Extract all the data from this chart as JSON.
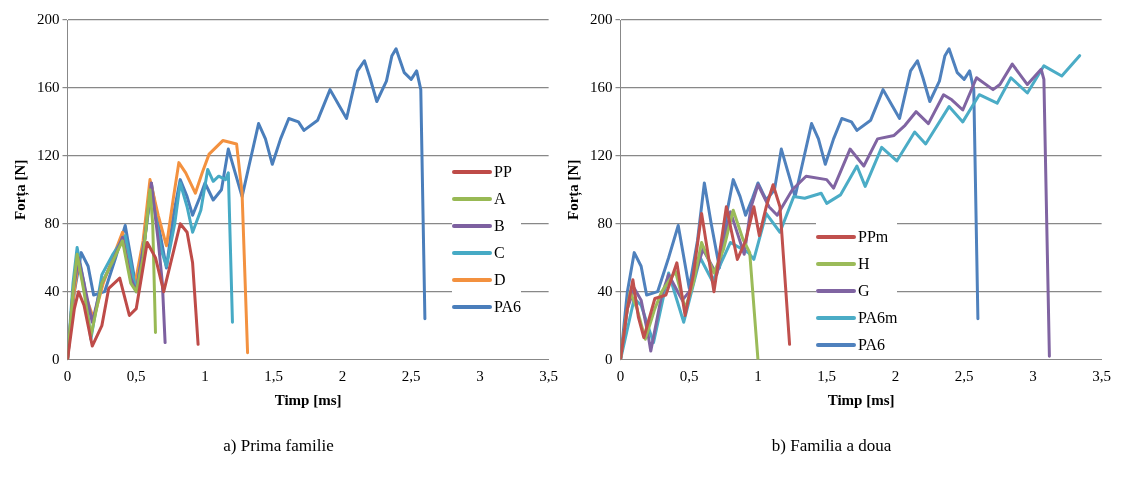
{
  "chart_data": [
    {
      "type": "line",
      "title": "a) Prima familie",
      "xlabel": "Timp [ms]",
      "ylabel": "Forța [N]",
      "xlim": [
        0,
        3.5
      ],
      "xticks": [
        0,
        {
          "value": 0.5,
          "label": "0,5"
        },
        1,
        {
          "value": 1.5,
          "label": "1,5"
        },
        2,
        {
          "value": 2.5,
          "label": "2,5"
        },
        3,
        {
          "value": 3.5,
          "label": "3,5"
        }
      ],
      "ylim": [
        0,
        200
      ],
      "yticks": [
        0,
        40,
        80,
        120,
        160,
        200
      ],
      "grid": "y",
      "legend": "right",
      "marker": "none",
      "line_style": "solid",
      "series": [
        {
          "name": "PP",
          "color": "#be4b48",
          "x": [
            0,
            0.05,
            0.08,
            0.12,
            0.18,
            0.25,
            0.3,
            0.38,
            0.45,
            0.5,
            0.58,
            0.64,
            0.7,
            0.76,
            0.82,
            0.87,
            0.91,
            0.95
          ],
          "values": [
            0,
            30,
            40,
            32,
            8,
            20,
            42,
            48,
            26,
            30,
            69,
            60,
            40,
            60,
            80,
            75,
            57,
            9
          ]
        },
        {
          "name": "A",
          "color": "#98b954",
          "x": [
            0,
            0.04,
            0.07,
            0.12,
            0.17,
            0.25,
            0.33,
            0.4,
            0.46,
            0.5,
            0.55,
            0.6,
            0.62,
            0.64
          ],
          "values": [
            0,
            40,
            62,
            40,
            14,
            45,
            58,
            70,
            45,
            40,
            60,
            100,
            80,
            16
          ]
        },
        {
          "name": "B",
          "color": "#7d60a0",
          "x": [
            0,
            0.04,
            0.08,
            0.12,
            0.18,
            0.25,
            0.33,
            0.4,
            0.46,
            0.5,
            0.56,
            0.61,
            0.66,
            0.69,
            0.71
          ],
          "values": [
            0,
            40,
            60,
            45,
            22,
            45,
            58,
            72,
            48,
            40,
            70,
            104,
            70,
            45,
            10
          ]
        },
        {
          "name": "C",
          "color": "#46aac5",
          "x": [
            0,
            0.04,
            0.07,
            0.12,
            0.17,
            0.25,
            0.33,
            0.42,
            0.5,
            0.56,
            0.61,
            0.68,
            0.72,
            0.78,
            0.82,
            0.87,
            0.91,
            0.97,
            1.02,
            1.06,
            1.1,
            1.15,
            1.17,
            1.2
          ],
          "values": [
            0,
            45,
            66,
            45,
            12,
            50,
            62,
            73,
            40,
            70,
            100,
            65,
            55,
            80,
            104,
            90,
            75,
            88,
            112,
            105,
            108,
            106,
            110,
            22
          ]
        },
        {
          "name": "D",
          "color": "#f3913f",
          "x": [
            0,
            0.04,
            0.08,
            0.13,
            0.19,
            0.26,
            0.33,
            0.4,
            0.49,
            0.55,
            0.6,
            0.66,
            0.72,
            0.77,
            0.81,
            0.86,
            0.93,
            0.98,
            1.03,
            1.08,
            1.13,
            1.18,
            1.23,
            1.27,
            1.31
          ],
          "values": [
            0,
            35,
            58,
            38,
            24,
            45,
            60,
            75,
            44,
            70,
            106,
            85,
            67,
            95,
            116,
            110,
            98,
            110,
            121,
            125,
            129,
            128,
            127,
            98,
            4
          ]
        },
        {
          "name": "PA6",
          "color": "#4a7ebb",
          "x": [
            0,
            0.05,
            0.1,
            0.15,
            0.19,
            0.27,
            0.35,
            0.42,
            0.5,
            0.56,
            0.61,
            0.66,
            0.72,
            0.77,
            0.82,
            0.87,
            0.91,
            0.96,
            1.0,
            1.06,
            1.12,
            1.17,
            1.22,
            1.27,
            1.32,
            1.39,
            1.44,
            1.49,
            1.55,
            1.61,
            1.68,
            1.72,
            1.82,
            1.91,
            1.98,
            2.03,
            2.11,
            2.16,
            2.2,
            2.25,
            2.32,
            2.36,
            2.39,
            2.45,
            2.5,
            2.54,
            2.57,
            2.6
          ],
          "values": [
            0,
            40,
            63,
            55,
            38,
            40,
            60,
            79,
            42,
            70,
            104,
            80,
            54,
            85,
            106,
            96,
            85,
            95,
            104,
            94,
            100,
            124,
            110,
            96,
            114,
            139,
            130,
            115,
            130,
            142,
            140,
            135,
            141,
            159,
            149,
            142,
            170,
            176,
            166,
            152,
            164,
            179,
            183,
            169,
            165,
            170,
            159,
            24
          ]
        }
      ]
    },
    {
      "type": "line",
      "title": "b) Familia a doua",
      "xlabel": "Timp [ms]",
      "ylabel": "Forța [N]",
      "xlim": [
        0,
        3.5
      ],
      "xticks": [
        0,
        {
          "value": 0.5,
          "label": "0,5"
        },
        1,
        {
          "value": 1.5,
          "label": "1,5"
        },
        2,
        {
          "value": 2.5,
          "label": "2,5"
        },
        3,
        {
          "value": 3.5,
          "label": "3,5"
        }
      ],
      "ylim": [
        0,
        200
      ],
      "yticks": [
        0,
        40,
        80,
        120,
        160,
        200
      ],
      "grid": "y",
      "legend": "bottom",
      "marker": "none",
      "line_style": "solid",
      "series": [
        {
          "name": "PPm",
          "color": "#c0504d",
          "x": [
            0,
            0.05,
            0.09,
            0.13,
            0.17,
            0.25,
            0.33,
            0.41,
            0.47,
            0.53,
            0.59,
            0.68,
            0.77,
            0.85,
            0.91,
            0.97,
            1.01,
            1.06,
            1.11,
            1.16,
            1.23
          ],
          "values": [
            0,
            30,
            47,
            25,
            13,
            36,
            38,
            57,
            26,
            50,
            86,
            40,
            90,
            59,
            70,
            90,
            73,
            90,
            103,
            90,
            9
          ]
        },
        {
          "name": "H",
          "color": "#9bbb59",
          "x": [
            0,
            0.04,
            0.07,
            0.12,
            0.18,
            0.25,
            0.3,
            0.4,
            0.47,
            0.53,
            0.59,
            0.68,
            0.75,
            0.82,
            0.89,
            0.94,
            1.0
          ],
          "values": [
            0,
            25,
            40,
            30,
            12,
            30,
            40,
            52,
            30,
            45,
            69,
            51,
            65,
            88,
            71,
            63,
            0
          ]
        },
        {
          "name": "G",
          "color": "#8064a2",
          "x": [
            0,
            0.05,
            0.1,
            0.15,
            0.2,
            0.22,
            0.3,
            0.35,
            0.45,
            0.5,
            0.6,
            0.7,
            0.8,
            0.9,
            0.95,
            1.0,
            1.08,
            1.14,
            1.25,
            1.35,
            1.5,
            1.55,
            1.67,
            1.77,
            1.87,
            1.99,
            2.07,
            2.15,
            2.24,
            2.35,
            2.41,
            2.49,
            2.59,
            2.71,
            2.76,
            2.85,
            2.96,
            3.06,
            3.08,
            3.12
          ],
          "values": [
            0,
            30,
            42,
            35,
            15,
            5,
            38,
            50,
            35,
            40,
            65,
            50,
            87,
            62,
            90,
            103,
            90,
            85,
            100,
            108,
            106,
            101,
            124,
            114,
            130,
            132,
            138,
            146,
            139,
            156,
            153,
            147,
            166,
            159,
            162,
            174,
            162,
            171,
            165,
            2
          ]
        },
        {
          "name": "PA6m",
          "color": "#4bacc6",
          "x": [
            0,
            0.1,
            0.15,
            0.24,
            0.35,
            0.46,
            0.58,
            0.67,
            0.8,
            0.93,
            0.97,
            1.06,
            1.16,
            1.26,
            1.34,
            1.46,
            1.5,
            1.6,
            1.72,
            1.78,
            1.9,
            2.01,
            2.14,
            2.22,
            2.39,
            2.49,
            2.61,
            2.74,
            2.84,
            2.96,
            3.08,
            3.21,
            3.34
          ],
          "values": [
            0,
            36,
            32,
            10,
            51,
            22,
            60,
            46,
            69,
            63,
            59,
            86,
            75,
            96,
            95,
            98,
            92,
            97,
            114,
            102,
            125,
            117,
            134,
            127,
            149,
            140,
            156,
            151,
            166,
            157,
            173,
            167,
            179
          ]
        },
        {
          "name": "PA6",
          "color": "#4f81bd",
          "x": [
            0,
            0.05,
            0.1,
            0.15,
            0.19,
            0.27,
            0.35,
            0.42,
            0.5,
            0.56,
            0.61,
            0.66,
            0.72,
            0.77,
            0.82,
            0.87,
            0.91,
            0.96,
            1.0,
            1.06,
            1.12,
            1.17,
            1.22,
            1.27,
            1.32,
            1.39,
            1.44,
            1.49,
            1.55,
            1.61,
            1.68,
            1.72,
            1.82,
            1.91,
            1.98,
            2.03,
            2.11,
            2.16,
            2.2,
            2.25,
            2.32,
            2.36,
            2.39,
            2.45,
            2.5,
            2.54,
            2.57,
            2.6
          ],
          "values": [
            0,
            40,
            63,
            55,
            38,
            40,
            60,
            79,
            42,
            70,
            104,
            80,
            54,
            85,
            106,
            96,
            85,
            95,
            104,
            94,
            100,
            124,
            110,
            96,
            114,
            139,
            130,
            115,
            130,
            142,
            140,
            135,
            141,
            159,
            149,
            142,
            170,
            176,
            166,
            152,
            164,
            179,
            183,
            169,
            165,
            170,
            159,
            24
          ]
        }
      ]
    }
  ]
}
